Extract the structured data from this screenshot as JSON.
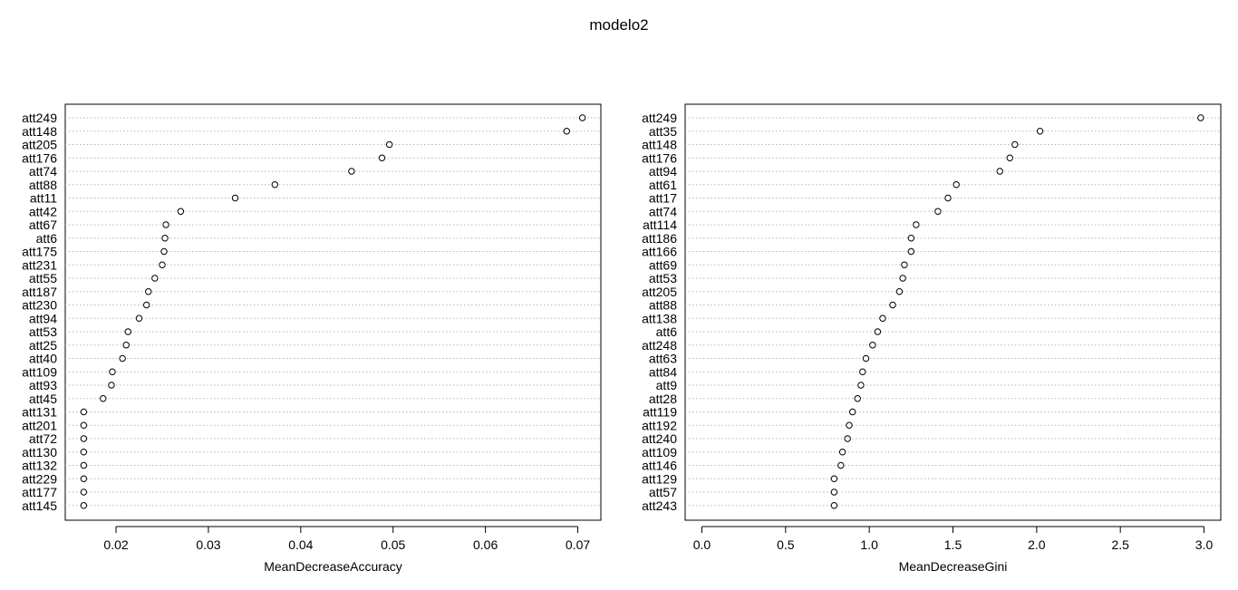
{
  "title": "modelo2",
  "chart_data": [
    {
      "type": "scatter",
      "subtype": "dotchart",
      "title": "",
      "xlabel": "MeanDecreaseAccuracy",
      "ylabel": "",
      "xlim": [
        0.0145,
        0.0725
      ],
      "xticks": [
        0.02,
        0.03,
        0.04,
        0.05,
        0.06,
        0.07
      ],
      "xtick_labels": [
        "0.02",
        "0.03",
        "0.04",
        "0.05",
        "0.06",
        "0.07"
      ],
      "grid": "dotted horizontal lines",
      "categories": [
        "att249",
        "att148",
        "att205",
        "att176",
        "att74",
        "att88",
        "att11",
        "att42",
        "att67",
        "att6",
        "att175",
        "att231",
        "att55",
        "att187",
        "att230",
        "att94",
        "att53",
        "att25",
        "att40",
        "att109",
        "att93",
        "att45",
        "att131",
        "att201",
        "att72",
        "att130",
        "att132",
        "att229",
        "att177",
        "att145"
      ],
      "values": [
        0.0705,
        0.0688,
        0.0496,
        0.0488,
        0.0455,
        0.0372,
        0.0329,
        0.027,
        0.0254,
        0.0253,
        0.0252,
        0.025,
        0.0242,
        0.0235,
        0.0233,
        0.0225,
        0.0213,
        0.0211,
        0.0207,
        0.0196,
        0.0195,
        0.0186,
        0.0165,
        0.0165,
        0.0165,
        0.0165,
        0.0165,
        0.0165,
        0.0165,
        0.0165
      ]
    },
    {
      "type": "scatter",
      "subtype": "dotchart",
      "title": "",
      "xlabel": "MeanDecreaseGini",
      "ylabel": "",
      "xlim": [
        -0.1,
        3.1
      ],
      "xticks": [
        0.0,
        0.5,
        1.0,
        1.5,
        2.0,
        2.5,
        3.0
      ],
      "xtick_labels": [
        "0.0",
        "0.5",
        "1.0",
        "1.5",
        "2.0",
        "2.5",
        "3.0"
      ],
      "grid": "dotted horizontal lines",
      "categories": [
        "att249",
        "att35",
        "att148",
        "att176",
        "att94",
        "att61",
        "att17",
        "att74",
        "att114",
        "att186",
        "att166",
        "att69",
        "att53",
        "att205",
        "att88",
        "att138",
        "att6",
        "att248",
        "att63",
        "att84",
        "att9",
        "att28",
        "att119",
        "att192",
        "att240",
        "att109",
        "att146",
        "att129",
        "att57",
        "att243"
      ],
      "values": [
        2.98,
        2.02,
        1.87,
        1.84,
        1.78,
        1.52,
        1.47,
        1.41,
        1.28,
        1.25,
        1.25,
        1.21,
        1.2,
        1.18,
        1.14,
        1.08,
        1.05,
        1.02,
        0.98,
        0.96,
        0.95,
        0.93,
        0.9,
        0.88,
        0.87,
        0.84,
        0.83,
        0.79,
        0.79,
        0.79
      ]
    }
  ]
}
